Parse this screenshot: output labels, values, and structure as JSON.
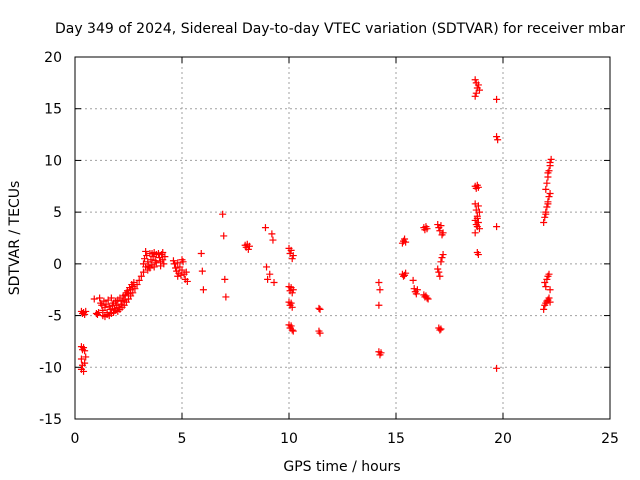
{
  "chart_data": {
    "type": "scatter",
    "title": "Day 349 of 2024, Sidereal Day-to-day VTEC variation (SDTVAR) for receiver mbar",
    "xlabel": "GPS time / hours",
    "ylabel": "SDTVAR / TECUs",
    "xlim": [
      0,
      25
    ],
    "ylim": [
      -15,
      20
    ],
    "xticks": [
      0,
      5,
      10,
      15,
      20,
      25
    ],
    "yticks": [
      -15,
      -10,
      -5,
      0,
      5,
      10,
      15,
      20
    ],
    "grid": true,
    "marker": "+",
    "color": "#ff0000",
    "series": [
      {
        "name": "SDTVAR",
        "points": [
          [
            0.3,
            -4.6
          ],
          [
            0.35,
            -4.8
          ],
          [
            0.4,
            -4.7
          ],
          [
            0.45,
            -4.9
          ],
          [
            0.5,
            -4.6
          ],
          [
            0.3,
            -8.0
          ],
          [
            0.35,
            -8.3
          ],
          [
            0.4,
            -8.1
          ],
          [
            0.45,
            -8.4
          ],
          [
            0.3,
            -9.2
          ],
          [
            0.35,
            -9.8
          ],
          [
            0.4,
            -10.4
          ],
          [
            0.45,
            -9.6
          ],
          [
            0.5,
            -9.0
          ],
          [
            0.3,
            -10.2
          ],
          [
            0.9,
            -3.4
          ],
          [
            1.0,
            -4.8
          ],
          [
            1.05,
            -4.9
          ],
          [
            1.1,
            -4.7
          ],
          [
            1.15,
            -3.3
          ],
          [
            1.2,
            -3.8
          ],
          [
            1.25,
            -4.0
          ],
          [
            1.3,
            -4.5
          ],
          [
            1.35,
            -3.6
          ],
          [
            1.4,
            -4.2
          ],
          [
            1.45,
            -3.9
          ],
          [
            1.5,
            -4.7
          ],
          [
            1.55,
            -3.5
          ],
          [
            1.6,
            -4.1
          ],
          [
            1.65,
            -4.4
          ],
          [
            1.7,
            -3.3
          ],
          [
            1.75,
            -4.0
          ],
          [
            1.8,
            -3.8
          ],
          [
            1.85,
            -4.3
          ],
          [
            1.9,
            -3.6
          ],
          [
            1.95,
            -4.0
          ],
          [
            2.0,
            -3.5
          ],
          [
            2.05,
            -4.2
          ],
          [
            2.1,
            -3.3
          ],
          [
            2.15,
            -3.9
          ],
          [
            2.2,
            -3.6
          ],
          [
            2.25,
            -3.1
          ],
          [
            2.3,
            -3.5
          ],
          [
            2.35,
            -3.0
          ],
          [
            2.4,
            -2.8
          ],
          [
            2.45,
            -2.6
          ],
          [
            2.5,
            -2.9
          ],
          [
            2.55,
            -2.3
          ],
          [
            2.6,
            -2.5
          ],
          [
            2.65,
            -2.0
          ],
          [
            2.7,
            -2.2
          ],
          [
            2.75,
            -1.8
          ],
          [
            1.3,
            -5.0
          ],
          [
            1.4,
            -5.1
          ],
          [
            1.5,
            -4.9
          ],
          [
            1.6,
            -5.0
          ],
          [
            1.7,
            -4.8
          ],
          [
            1.8,
            -4.7
          ],
          [
            1.9,
            -4.5
          ],
          [
            2.0,
            -4.6
          ],
          [
            2.1,
            -4.4
          ],
          [
            2.2,
            -4.2
          ],
          [
            2.3,
            -4.0
          ],
          [
            2.4,
            -3.7
          ],
          [
            2.5,
            -3.4
          ],
          [
            2.6,
            -3.1
          ],
          [
            2.7,
            -2.8
          ],
          [
            2.8,
            -2.4
          ],
          [
            2.9,
            -2.0
          ],
          [
            3.0,
            -1.6
          ],
          [
            3.1,
            -1.2
          ],
          [
            3.2,
            -0.8
          ],
          [
            3.2,
            0.0
          ],
          [
            3.25,
            0.5
          ],
          [
            3.3,
            -0.3
          ],
          [
            3.35,
            0.8
          ],
          [
            3.4,
            0.2
          ],
          [
            3.45,
            -0.2
          ],
          [
            3.5,
            1.0
          ],
          [
            3.55,
            0.4
          ],
          [
            3.6,
            -0.1
          ],
          [
            3.65,
            0.7
          ],
          [
            3.7,
            1.1
          ],
          [
            3.75,
            0.3
          ],
          [
            3.8,
            0.9
          ],
          [
            3.3,
            1.2
          ],
          [
            3.4,
            -0.6
          ],
          [
            3.5,
            -0.4
          ],
          [
            3.6,
            1.0
          ],
          [
            3.7,
            -0.3
          ],
          [
            3.8,
            0.1
          ],
          [
            3.9,
            1.0
          ],
          [
            3.95,
            0.6
          ],
          [
            4.0,
            0.2
          ],
          [
            4.05,
            0.9
          ],
          [
            4.1,
            0.4
          ],
          [
            4.15,
            0.0
          ],
          [
            4.2,
            0.7
          ],
          [
            4.0,
            -0.2
          ],
          [
            4.1,
            1.1
          ],
          [
            4.6,
            0.3
          ],
          [
            4.65,
            0.0
          ],
          [
            4.7,
            -0.4
          ],
          [
            4.75,
            -0.7
          ],
          [
            4.8,
            0.1
          ],
          [
            4.85,
            -0.9
          ],
          [
            4.9,
            -0.3
          ],
          [
            4.95,
            -1.1
          ],
          [
            5.0,
            -0.6
          ],
          [
            5.05,
            0.2
          ],
          [
            5.1,
            -1.0
          ],
          [
            5.15,
            -1.5
          ],
          [
            5.2,
            -0.8
          ],
          [
            5.25,
            -1.7
          ],
          [
            5.0,
            0.4
          ],
          [
            4.8,
            -1.2
          ],
          [
            5.9,
            1.0
          ],
          [
            5.95,
            -0.7
          ],
          [
            6.0,
            -2.5
          ],
          [
            6.9,
            4.8
          ],
          [
            6.95,
            2.7
          ],
          [
            7.0,
            -1.5
          ],
          [
            7.05,
            -3.2
          ],
          [
            7.95,
            1.8
          ],
          [
            8.0,
            1.6
          ],
          [
            8.05,
            1.9
          ],
          [
            8.1,
            1.4
          ],
          [
            8.15,
            1.7
          ],
          [
            8.9,
            3.5
          ],
          [
            8.95,
            -0.3
          ],
          [
            9.0,
            -1.5
          ],
          [
            9.1,
            -1.0
          ],
          [
            9.2,
            2.9
          ],
          [
            9.25,
            2.3
          ],
          [
            9.3,
            -1.8
          ],
          [
            10.0,
            1.5
          ],
          [
            10.05,
            1.0
          ],
          [
            10.1,
            1.3
          ],
          [
            10.15,
            0.5
          ],
          [
            10.2,
            0.8
          ],
          [
            10.0,
            -2.2
          ],
          [
            10.05,
            -2.6
          ],
          [
            10.1,
            -2.3
          ],
          [
            10.15,
            -2.8
          ],
          [
            10.2,
            -2.5
          ],
          [
            10.0,
            -3.7
          ],
          [
            10.05,
            -4.0
          ],
          [
            10.1,
            -3.8
          ],
          [
            10.15,
            -4.2
          ],
          [
            10.0,
            -5.9
          ],
          [
            10.05,
            -6.2
          ],
          [
            10.1,
            -6.0
          ],
          [
            10.15,
            -6.4
          ],
          [
            10.2,
            -6.5
          ],
          [
            11.4,
            -4.3
          ],
          [
            11.45,
            -4.4
          ],
          [
            11.4,
            -6.5
          ],
          [
            11.45,
            -6.7
          ],
          [
            14.2,
            -1.8
          ],
          [
            14.25,
            -2.5
          ],
          [
            14.2,
            -4.0
          ],
          [
            14.2,
            -8.5
          ],
          [
            14.25,
            -8.8
          ],
          [
            14.3,
            -8.6
          ],
          [
            15.3,
            2.0
          ],
          [
            15.35,
            2.2
          ],
          [
            15.4,
            2.4
          ],
          [
            15.45,
            2.1
          ],
          [
            15.3,
            -1.0
          ],
          [
            15.35,
            -1.2
          ],
          [
            15.4,
            -1.1
          ],
          [
            15.45,
            -0.9
          ],
          [
            15.8,
            -1.6
          ],
          [
            15.85,
            -2.4
          ],
          [
            15.9,
            -2.7
          ],
          [
            15.95,
            -2.9
          ],
          [
            16.0,
            -2.5
          ],
          [
            16.3,
            3.5
          ],
          [
            16.35,
            3.3
          ],
          [
            16.4,
            3.6
          ],
          [
            16.45,
            3.4
          ],
          [
            16.3,
            -3.0
          ],
          [
            16.35,
            -3.2
          ],
          [
            16.4,
            -3.1
          ],
          [
            16.45,
            -3.3
          ],
          [
            16.5,
            -3.4
          ],
          [
            16.95,
            3.8
          ],
          [
            17.0,
            3.5
          ],
          [
            17.05,
            3.2
          ],
          [
            17.1,
            3.7
          ],
          [
            17.15,
            2.8
          ],
          [
            17.2,
            3.0
          ],
          [
            16.95,
            -0.5
          ],
          [
            17.0,
            -0.8
          ],
          [
            17.05,
            -1.2
          ],
          [
            17.1,
            0.2
          ],
          [
            17.15,
            0.6
          ],
          [
            17.2,
            0.9
          ],
          [
            17.0,
            -6.2
          ],
          [
            17.05,
            -6.4
          ],
          [
            17.1,
            -6.3
          ],
          [
            18.7,
            17.8
          ],
          [
            18.75,
            17.5
          ],
          [
            18.8,
            17.0
          ],
          [
            18.85,
            17.3
          ],
          [
            18.9,
            16.8
          ],
          [
            18.7,
            16.2
          ],
          [
            18.75,
            16.5
          ],
          [
            18.7,
            7.5
          ],
          [
            18.75,
            7.3
          ],
          [
            18.8,
            7.6
          ],
          [
            18.85,
            7.4
          ],
          [
            18.7,
            5.8
          ],
          [
            18.75,
            5.2
          ],
          [
            18.8,
            4.6
          ],
          [
            18.85,
            4.0
          ],
          [
            18.9,
            3.4
          ],
          [
            18.7,
            3.0
          ],
          [
            18.75,
            3.8
          ],
          [
            18.8,
            4.4
          ],
          [
            18.85,
            5.6
          ],
          [
            18.9,
            5.0
          ],
          [
            18.7,
            4.2
          ],
          [
            18.8,
            3.6
          ],
          [
            18.8,
            1.1
          ],
          [
            18.85,
            0.9
          ],
          [
            19.7,
            15.9
          ],
          [
            19.7,
            12.3
          ],
          [
            19.75,
            12.0
          ],
          [
            19.7,
            3.6
          ],
          [
            19.7,
            -10.1
          ],
          [
            21.9,
            4.0
          ],
          [
            21.95,
            4.5
          ],
          [
            22.0,
            5.0
          ],
          [
            22.05,
            5.5
          ],
          [
            22.1,
            6.0
          ],
          [
            22.15,
            6.5
          ],
          [
            22.2,
            6.8
          ],
          [
            22.0,
            4.8
          ],
          [
            22.1,
            5.8
          ],
          [
            22.0,
            7.2
          ],
          [
            22.05,
            7.8
          ],
          [
            22.1,
            8.4
          ],
          [
            22.15,
            9.0
          ],
          [
            22.2,
            9.5
          ],
          [
            22.25,
            10.1
          ],
          [
            22.1,
            8.8
          ],
          [
            22.2,
            9.8
          ],
          [
            21.95,
            -1.8
          ],
          [
            22.0,
            -2.2
          ],
          [
            22.05,
            -1.5
          ],
          [
            22.1,
            -1.2
          ],
          [
            22.15,
            -1.0
          ],
          [
            22.2,
            -2.5
          ],
          [
            21.9,
            -4.4
          ],
          [
            21.95,
            -4.0
          ],
          [
            22.0,
            -3.8
          ],
          [
            22.05,
            -3.6
          ],
          [
            22.1,
            -3.5
          ],
          [
            22.15,
            -3.3
          ],
          [
            22.2,
            -3.7
          ]
        ]
      }
    ]
  }
}
